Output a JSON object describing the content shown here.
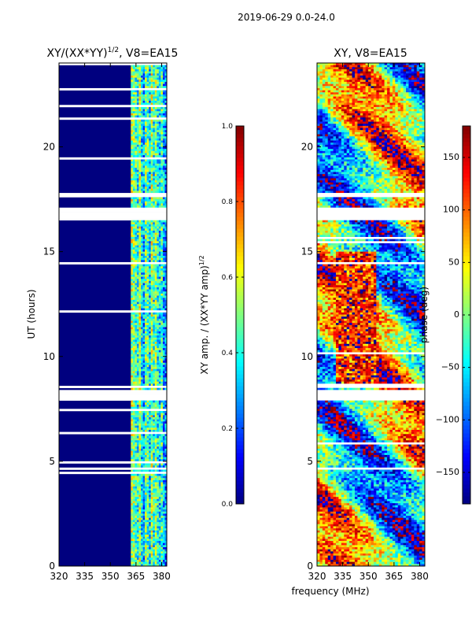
{
  "figure_title": "2019-06-29 0.0-24.0",
  "chart_data": [
    {
      "type": "heatmap",
      "title_main": "XY/(XX*YY)",
      "title_exp": "1/2",
      "title_tail": ", V8=EA15",
      "xlabel": "",
      "ylabel": "UT (hours)",
      "xlim": [
        320,
        383
      ],
      "ylim": [
        0,
        24
      ],
      "xticks": [
        320,
        335,
        350,
        365,
        380
      ],
      "yticks": [
        0,
        5,
        10,
        15,
        20
      ],
      "colorbar": {
        "label_main": "XY amp. / (XX*YY amp)",
        "label_exp": "1/2",
        "range": [
          0.0,
          1.0
        ],
        "ticks": [
          "0.0",
          "0.2",
          "0.4",
          "0.6",
          "0.8",
          "1.0"
        ],
        "colormap": "jet"
      },
      "rfi_band_mhz": [
        360,
        383
      ],
      "band_median": 0.45,
      "background_value": 0.02
    },
    {
      "type": "heatmap",
      "title": "XY, V8=EA15",
      "xlabel": "frequency (MHz)",
      "ylabel": "",
      "xlim": [
        320,
        383
      ],
      "ylim": [
        0,
        24
      ],
      "xticks": [
        320,
        335,
        350,
        365,
        380
      ],
      "yticks": [
        0,
        5,
        10,
        15,
        20
      ],
      "colorbar": {
        "label": "phase (deg)",
        "range": [
          -180,
          180
        ],
        "ticks": [
          "-150",
          "-100",
          "-50",
          "0",
          "50",
          "100",
          "150"
        ],
        "colormap": "jet"
      },
      "phase_range_deg": [
        -180,
        180
      ]
    }
  ],
  "flagged_time_ranges_hours": [
    [
      16.55,
      17.1
    ],
    [
      7.9,
      8.45
    ],
    [
      17.65,
      17.8
    ],
    [
      8.55,
      8.65
    ],
    [
      0.2,
      0.25
    ],
    [
      23.3,
      23.35
    ],
    [
      22.5,
      22.55
    ],
    [
      21.3,
      21.34
    ]
  ],
  "colors": {
    "axis": "#000000",
    "flag": "#ffffff",
    "background_value_color": "#00007f"
  }
}
